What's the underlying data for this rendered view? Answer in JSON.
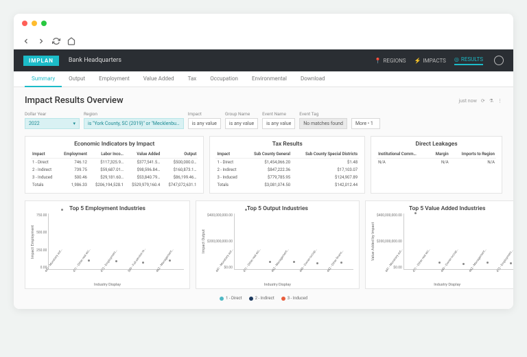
{
  "browser": {
    "dots": [
      "#ff5f57",
      "#febc2e",
      "#28c840"
    ]
  },
  "header": {
    "logo": "IMPLAN",
    "title": "Bank Headquarters",
    "nav": [
      {
        "label": "REGIONS",
        "icon": "pin"
      },
      {
        "label": "IMPACTS",
        "icon": "bolt"
      },
      {
        "label": "RESULTS",
        "icon": "target",
        "active": true
      }
    ]
  },
  "tabs": [
    "Summary",
    "Output",
    "Employment",
    "Value Added",
    "Tax",
    "Occupation",
    "Environmental",
    "Download"
  ],
  "active_tab": 0,
  "page_title": "Impact Results Overview",
  "head_status": "just now",
  "filters": {
    "dollar_year": {
      "label": "Dollar Year",
      "value": "2022"
    },
    "region": {
      "label": "Region",
      "value": "is \"York County, SC (2019)\" or \"Mecklenbu…"
    },
    "impact": {
      "label": "Impact",
      "value": "is any value"
    },
    "group_name": {
      "label": "Group Name",
      "value": "is any value"
    },
    "event_name": {
      "label": "Event Name",
      "value": "is any value"
    },
    "event_tag": {
      "label": "Event Tag",
      "value": "No matches found"
    },
    "more": {
      "value": "More • 1"
    }
  },
  "econ": {
    "title": "Economic Indicators by Impact",
    "columns": [
      "Impact",
      "Employment",
      "Labor Inco…",
      "Value Added",
      "Output"
    ],
    "rows": [
      [
        "1 - Direct",
        "746.12",
        "$117,325.9…",
        "$377,541.5…",
        "$500,000.0…"
      ],
      [
        "2 - Indirect",
        "739.75",
        "$59,687.01…",
        "$98,596.84…",
        "$160,873.1…"
      ],
      [
        "3 - Induced",
        "500.46",
        "$29,181.60…",
        "$53,840.79…",
        "$86,199.46…"
      ],
      [
        "Totals",
        "1,986.33",
        "$206,194,528.1",
        "$529,979,160.4",
        "$747,072,631.1"
      ]
    ]
  },
  "tax": {
    "title": "Tax Results",
    "columns": [
      "Impact",
      "Sub County General",
      "Sub County Special Districts"
    ],
    "rows": [
      [
        "1 - Direct",
        "$1,454,066.20",
        "$1.48"
      ],
      [
        "2 - Indirect",
        "$847,222.36",
        "$17,103.07"
      ],
      [
        "3 - Induced",
        "$779,785.95",
        "$124,907.89"
      ],
      [
        "Totals",
        "$3,081,074.50",
        "$142,012.44"
      ]
    ]
  },
  "leak": {
    "title": "Direct Leakages",
    "columns": [
      "Institutional Comm…",
      "Margin",
      "Imports to Region"
    ],
    "rows": [
      [
        "N/A",
        "N/A",
        "N/A"
      ]
    ]
  },
  "charts": {
    "xaxis_title": "Industry Display",
    "colors": {
      "direct": "#4fb8c4",
      "indirect": "#1e3a5f",
      "induced": "#e85d3d",
      "grid": "#e8e8e8"
    },
    "emp": {
      "title": "Top 5 Employment Industries",
      "ylabel": "Impact Employment",
      "yticks": [
        "750.00",
        "500.00",
        "250.00",
        "0.00"
      ],
      "ymax": 750,
      "categories": [
        "441 - Monetary aut…",
        "471 - Other real est…",
        "472 - Employment…",
        "509 - Full-service re…",
        "462 - Management…"
      ],
      "series": [
        {
          "key": "direct",
          "values": [
            746,
            0,
            0,
            0,
            0
          ]
        },
        {
          "key": "indirect",
          "values": [
            0,
            62,
            58,
            12,
            68
          ]
        },
        {
          "key": "induced",
          "values": [
            0,
            18,
            8,
            36,
            6
          ]
        }
      ]
    },
    "out": {
      "title": "Top 5 Output Industries",
      "ylabel": "Impact Output",
      "yticks": [
        "$400,000,000.00",
        "$200,000,000.00",
        "$0.00"
      ],
      "ymax": 500000000,
      "categories": [
        "441 - Monetary aut…",
        "471 - Other real est…",
        "462 - Management…",
        "449 - Owner-occup…",
        "442 - Other financ…"
      ],
      "series": [
        {
          "key": "direct",
          "values": [
            500000000,
            0,
            0,
            0,
            0
          ]
        },
        {
          "key": "indirect",
          "values": [
            0,
            28000000,
            30000000,
            5000000,
            22000000
          ]
        },
        {
          "key": "induced",
          "values": [
            0,
            6000000,
            4000000,
            18000000,
            3000000
          ]
        }
      ]
    },
    "va": {
      "title": "Top 5 Value Added Industries",
      "ylabel": "Value Added by Impact",
      "yticks": [
        "$400,000,000.00",
        "$200,000,000.00",
        "$0.00"
      ],
      "ymax": 400000000,
      "categories": [
        "441 - Monetary aut…",
        "471 - Other real est…",
        "449 - Owner-occup…",
        "462 - Management…",
        "472 - Employment…"
      ],
      "series": [
        {
          "key": "direct",
          "values": [
            377000000,
            0,
            0,
            0,
            0
          ]
        },
        {
          "key": "indirect",
          "values": [
            0,
            20000000,
            4000000,
            18000000,
            14000000
          ]
        },
        {
          "key": "induced",
          "values": [
            0,
            4000000,
            12000000,
            2000000,
            3000000
          ]
        }
      ]
    }
  },
  "legend": [
    {
      "label": "1 - Direct",
      "key": "direct"
    },
    {
      "label": "2 - Indirect",
      "key": "indirect"
    },
    {
      "label": "3 - Induced",
      "key": "induced"
    }
  ]
}
